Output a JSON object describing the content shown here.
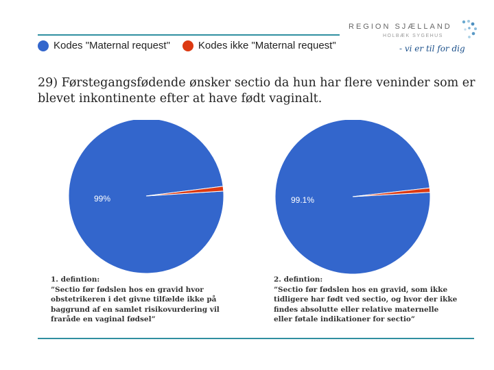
{
  "legend": {
    "items": [
      {
        "label": "Kodes \"Maternal request\"",
        "color": "#3366cc"
      },
      {
        "label": "Kodes ikke \"Maternal request\"",
        "color": "#dc3912"
      }
    ]
  },
  "logo": {
    "name": "REGION SJÆLLAND",
    "subtitle": "HOLBÆK SYGEHUS",
    "slogan": "- vi er til for dig"
  },
  "question": "29) Førstegangsfødende ønsker sectio da hun har flere veninder som er blevet inkontinente efter at have født vaginalt.",
  "chart_data": [
    {
      "type": "pie",
      "title": "",
      "labels": [
        "Kodes \"Maternal request\"",
        "Kodes ikke \"Maternal request\""
      ],
      "values": [
        99,
        1
      ],
      "colors": [
        "#3366cc",
        "#dc3912"
      ],
      "data_label": "99%"
    },
    {
      "type": "pie",
      "title": "",
      "labels": [
        "Kodes \"Maternal request\"",
        "Kodes ikke \"Maternal request\""
      ],
      "values": [
        99.1,
        0.9
      ],
      "colors": [
        "#3366cc",
        "#dc3912"
      ],
      "data_label": "99.1%"
    }
  ],
  "definitions": [
    {
      "heading": "1. defintion:",
      "text": "”Sectio før fødslen hos en gravid hvor\nobstetrikeren  i det givne tilfælde ikke på\nbaggrund af en samlet risikovurdering vil\nfraråde en vaginal fødsel”"
    },
    {
      "heading": "2. defintion:",
      "text": "”Sectio før fødslen hos en gravid, som ikke\ntidligere har født ved sectio, og hvor der ikke\nfindes absolutte eller relative maternelle\neller føtale indikationer  for sectio”"
    }
  ]
}
